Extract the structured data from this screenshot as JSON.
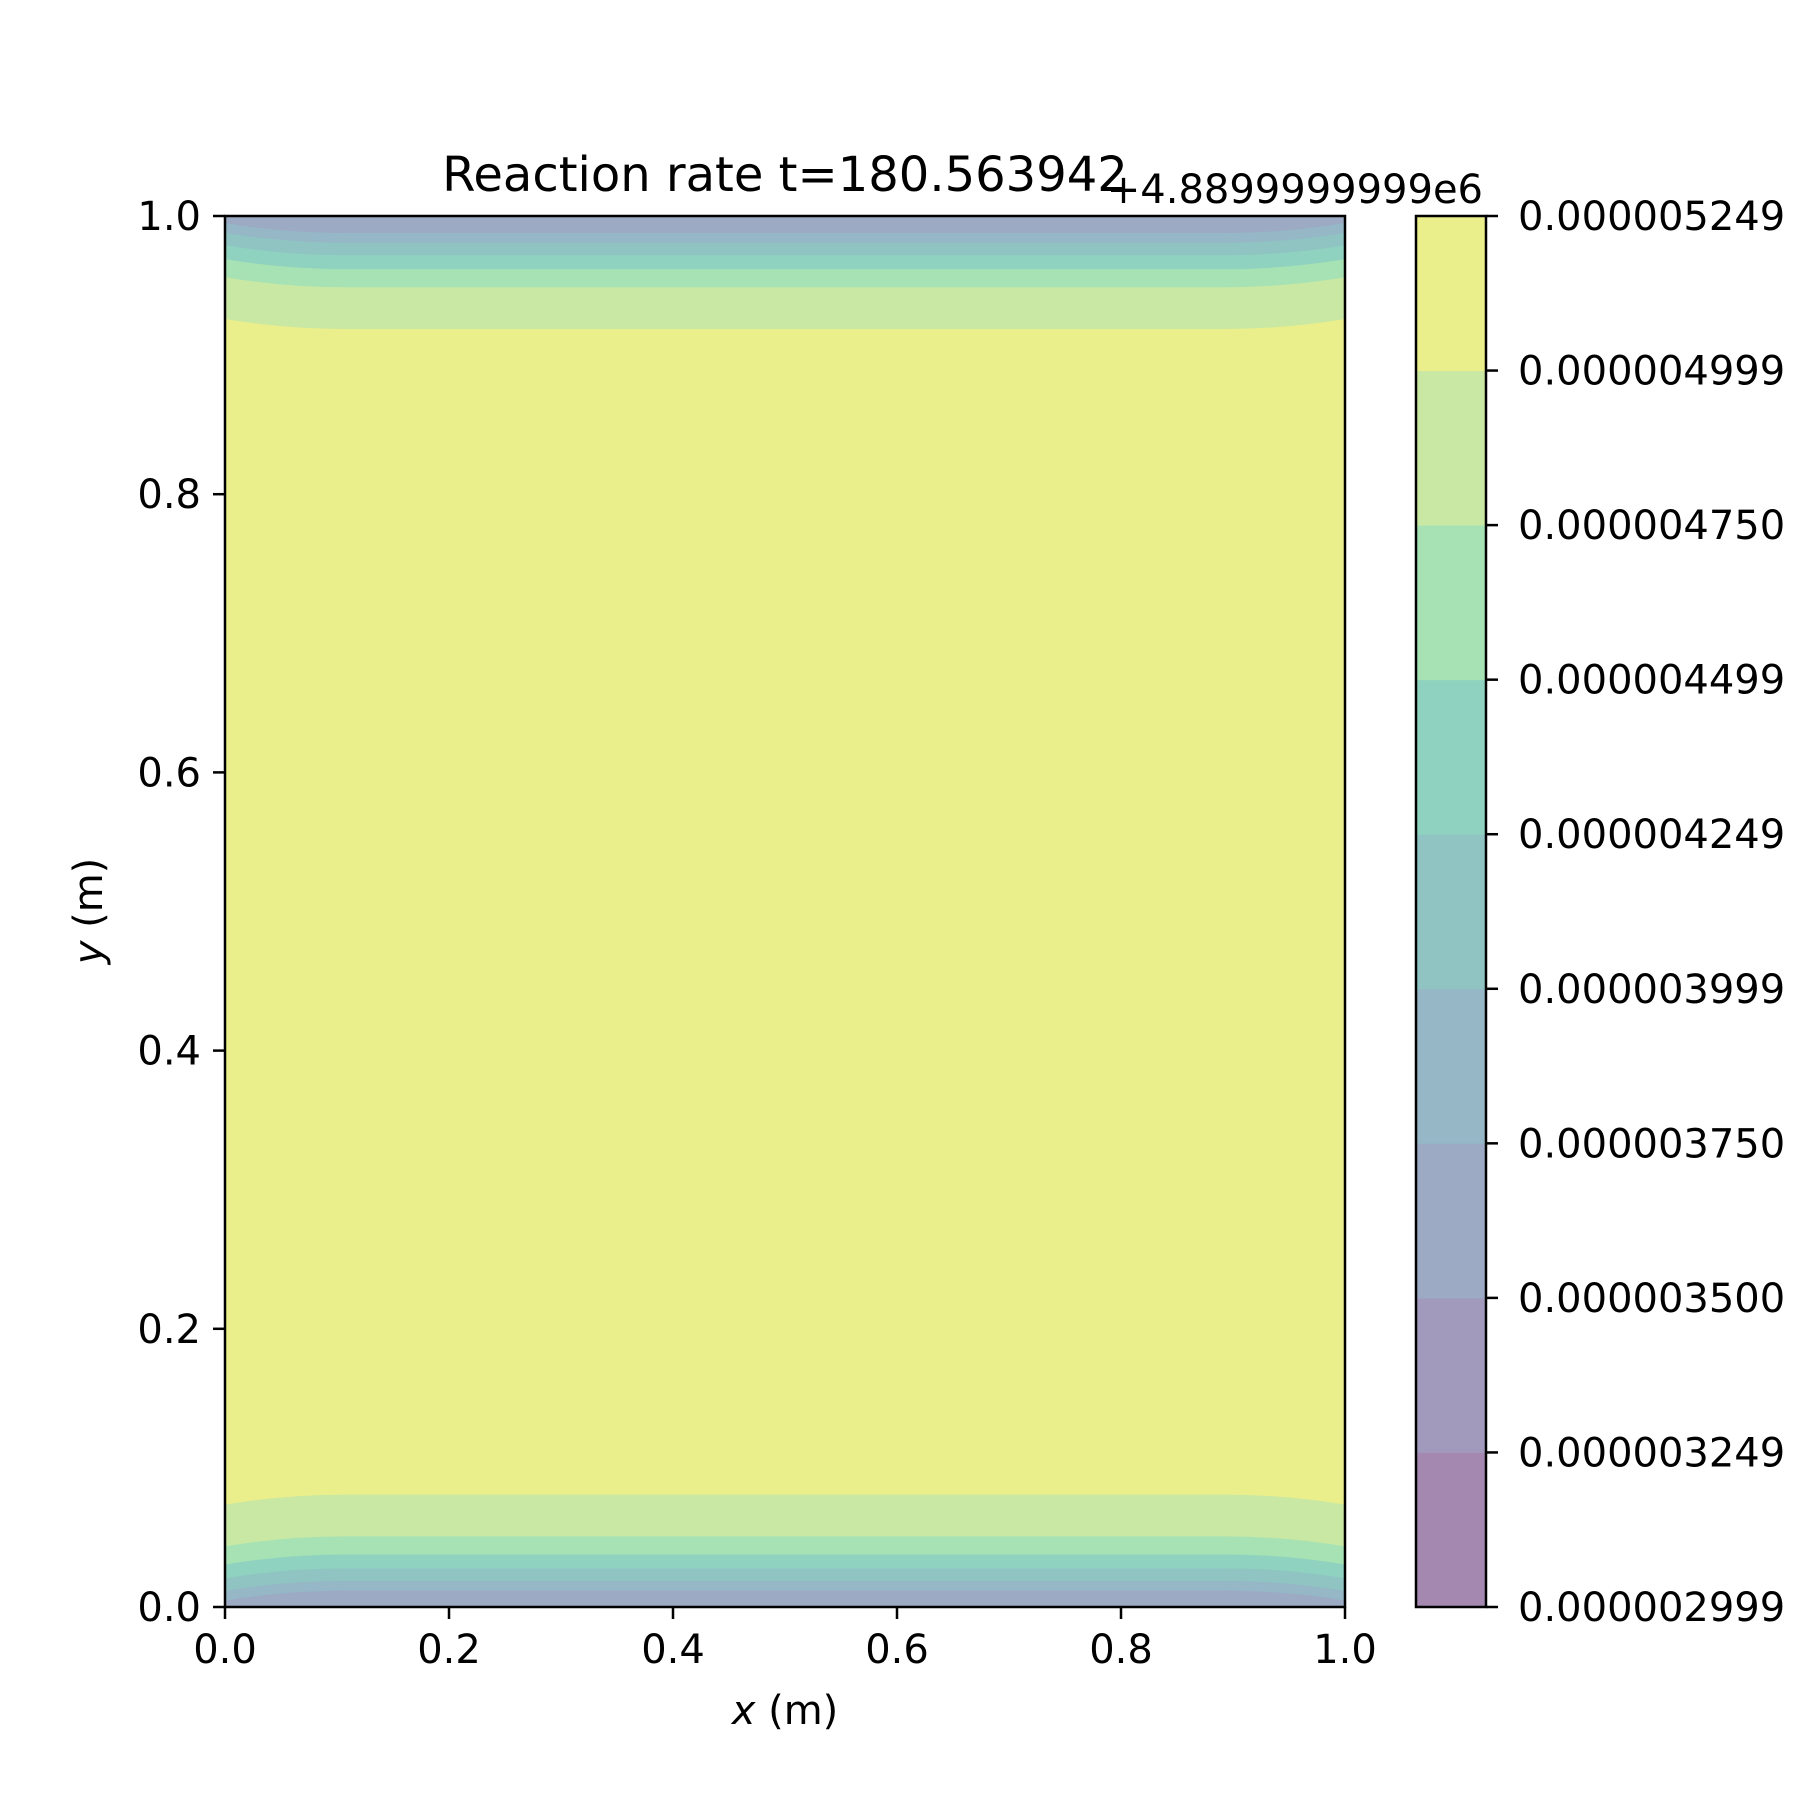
{
  "chart_data": {
    "type": "heatmap",
    "subtype": "filled-contour",
    "title": "Reaction rate t=180.563942",
    "xlabel_var": "x",
    "xlabel_unit": " (m)",
    "ylabel_var": "y",
    "ylabel_unit": " (m)",
    "xlim": [
      0.0,
      1.0
    ],
    "ylim": [
      0.0,
      1.0
    ],
    "x_ticks": [
      "0.0",
      "0.2",
      "0.4",
      "0.6",
      "0.8",
      "1.0"
    ],
    "y_ticks": [
      "0.0",
      "0.2",
      "0.4",
      "0.6",
      "0.8",
      "1.0"
    ],
    "grid": false,
    "colorbar": {
      "offset_label": "+4.8899999999e6",
      "levels": [
        "0.000002999",
        "0.000003249",
        "0.000003500",
        "0.000003750",
        "0.000003999",
        "0.000004249",
        "0.000004499",
        "0.000004750",
        "0.000004999",
        "0.000005249"
      ],
      "colors": [
        "#a488b0",
        "#a29abd",
        "#9caac4",
        "#95b7c6",
        "#8fc4c3",
        "#8fd2bf",
        "#a7e2b4",
        "#c9e8a3",
        "#ebef8b"
      ]
    },
    "field_description_bands_y": [
      {
        "y_from": 0.0,
        "y_to": 0.012,
        "level": 2
      },
      {
        "y_from": 0.012,
        "y_to": 0.019,
        "level": 3
      },
      {
        "y_from": 0.019,
        "y_to": 0.028,
        "level": 4
      },
      {
        "y_from": 0.028,
        "y_to": 0.038,
        "level": 5
      },
      {
        "y_from": 0.038,
        "y_to": 0.051,
        "level": 6
      },
      {
        "y_from": 0.051,
        "y_to": 0.081,
        "level": 7
      },
      {
        "y_from": 0.081,
        "y_to": 0.919,
        "level": 8
      },
      {
        "y_from": 0.919,
        "y_to": 0.949,
        "level": 7
      },
      {
        "y_from": 0.949,
        "y_to": 0.962,
        "level": 6
      },
      {
        "y_from": 0.962,
        "y_to": 0.972,
        "level": 5
      },
      {
        "y_from": 0.972,
        "y_to": 0.981,
        "level": 4
      },
      {
        "y_from": 0.981,
        "y_to": 0.988,
        "level": 3
      },
      {
        "y_from": 0.988,
        "y_to": 1.0,
        "level": 2
      }
    ]
  }
}
